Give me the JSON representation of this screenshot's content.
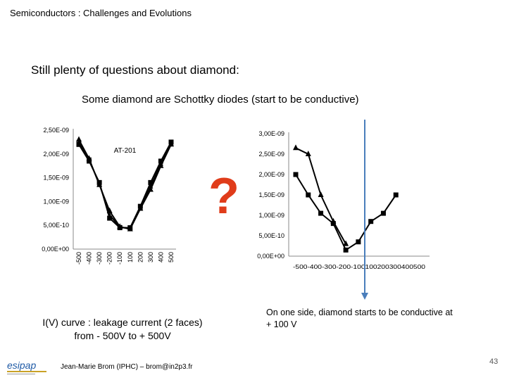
{
  "header": {
    "title": "Semiconductors : Challenges and Evolutions"
  },
  "headline": "Still plenty of questions about diamond:",
  "subtitle": "Some diamond are Schottky diodes (start to be conductive)",
  "question_mark": "?",
  "caption_left": {
    "line1": "I(V) curve : leakage current (2 faces)",
    "line2": "from  - 500V to + 500V"
  },
  "caption_right": "On one side, diamond starts to be conductive at + 100 V",
  "footer": {
    "author": "Jean-Marie Brom (IPHC) – brom@in2p3.fr",
    "page": "43"
  },
  "logo": {
    "name": "esipap",
    "text": "esipap"
  },
  "colors": {
    "question_mark": "#e03c1a",
    "marker_line": "#4a7ebb",
    "series": "#000000"
  },
  "chart_data": [
    {
      "type": "line",
      "title": "AT-201",
      "x": [
        -500,
        -400,
        -300,
        -200,
        -100,
        100,
        200,
        300,
        400,
        500
      ],
      "x_tick_labels": [
        "-500",
        "-400",
        "-300",
        "-200",
        "-100",
        "100",
        "200",
        "300",
        "400",
        "500"
      ],
      "y_tick_labels": [
        "0,00E+00",
        "5,00E-10",
        "1,00E-09",
        "1,50E-09",
        "2,00E-09",
        "2,50E-09"
      ],
      "ylim": [
        0,
        2.5e-09
      ],
      "grid": false,
      "series": [
        {
          "marker": "triangle",
          "values": [
            2.3e-09,
            1.9e-09,
            1.35e-09,
            8e-10,
            4.7e-10,
            4.2e-10,
            8.5e-10,
            1.25e-09,
            1.75e-09,
            2.2e-09
          ]
        },
        {
          "marker": "square",
          "values": [
            2.2e-09,
            1.85e-09,
            1.4e-09,
            6.5e-10,
            4.5e-10,
            4.5e-10,
            9e-10,
            1.4e-09,
            1.85e-09,
            2.25e-09
          ]
        },
        {
          "marker": "cross",
          "values": [
            2.25e-09,
            1.88e-09,
            1.37e-09,
            7.2e-10,
            4.6e-10,
            4.4e-10,
            8.7e-10,
            1.32e-09,
            1.8e-09,
            2.22e-09
          ]
        }
      ]
    },
    {
      "type": "line",
      "title": "",
      "x": [
        -500,
        -400,
        -300,
        -200,
        -100,
        100,
        200,
        300,
        400,
        500
      ],
      "x_tick_labels": [
        "-500",
        "-400",
        "-300",
        "-200",
        "-100",
        "100",
        "200",
        "300",
        "400",
        "500"
      ],
      "y_tick_labels": [
        "0,00E+00",
        "5,00E-10",
        "1,00E-09",
        "1,50E-09",
        "2,00E-09",
        "2,50E-09",
        "3,00E-09"
      ],
      "ylim": [
        0,
        3e-09
      ],
      "grid": false,
      "vertical_marker_x": 100,
      "series": [
        {
          "marker": "triangle",
          "values": [
            2.65e-09,
            2.5e-09,
            1.5e-09,
            8.5e-10,
            3e-10,
            null,
            null,
            null,
            null,
            null
          ]
        },
        {
          "marker": "square",
          "values": [
            2e-09,
            1.5e-09,
            1.05e-09,
            8e-10,
            1.5e-10,
            3.5e-10,
            8.5e-10,
            1.05e-09,
            1.5e-09,
            null
          ]
        }
      ]
    }
  ]
}
